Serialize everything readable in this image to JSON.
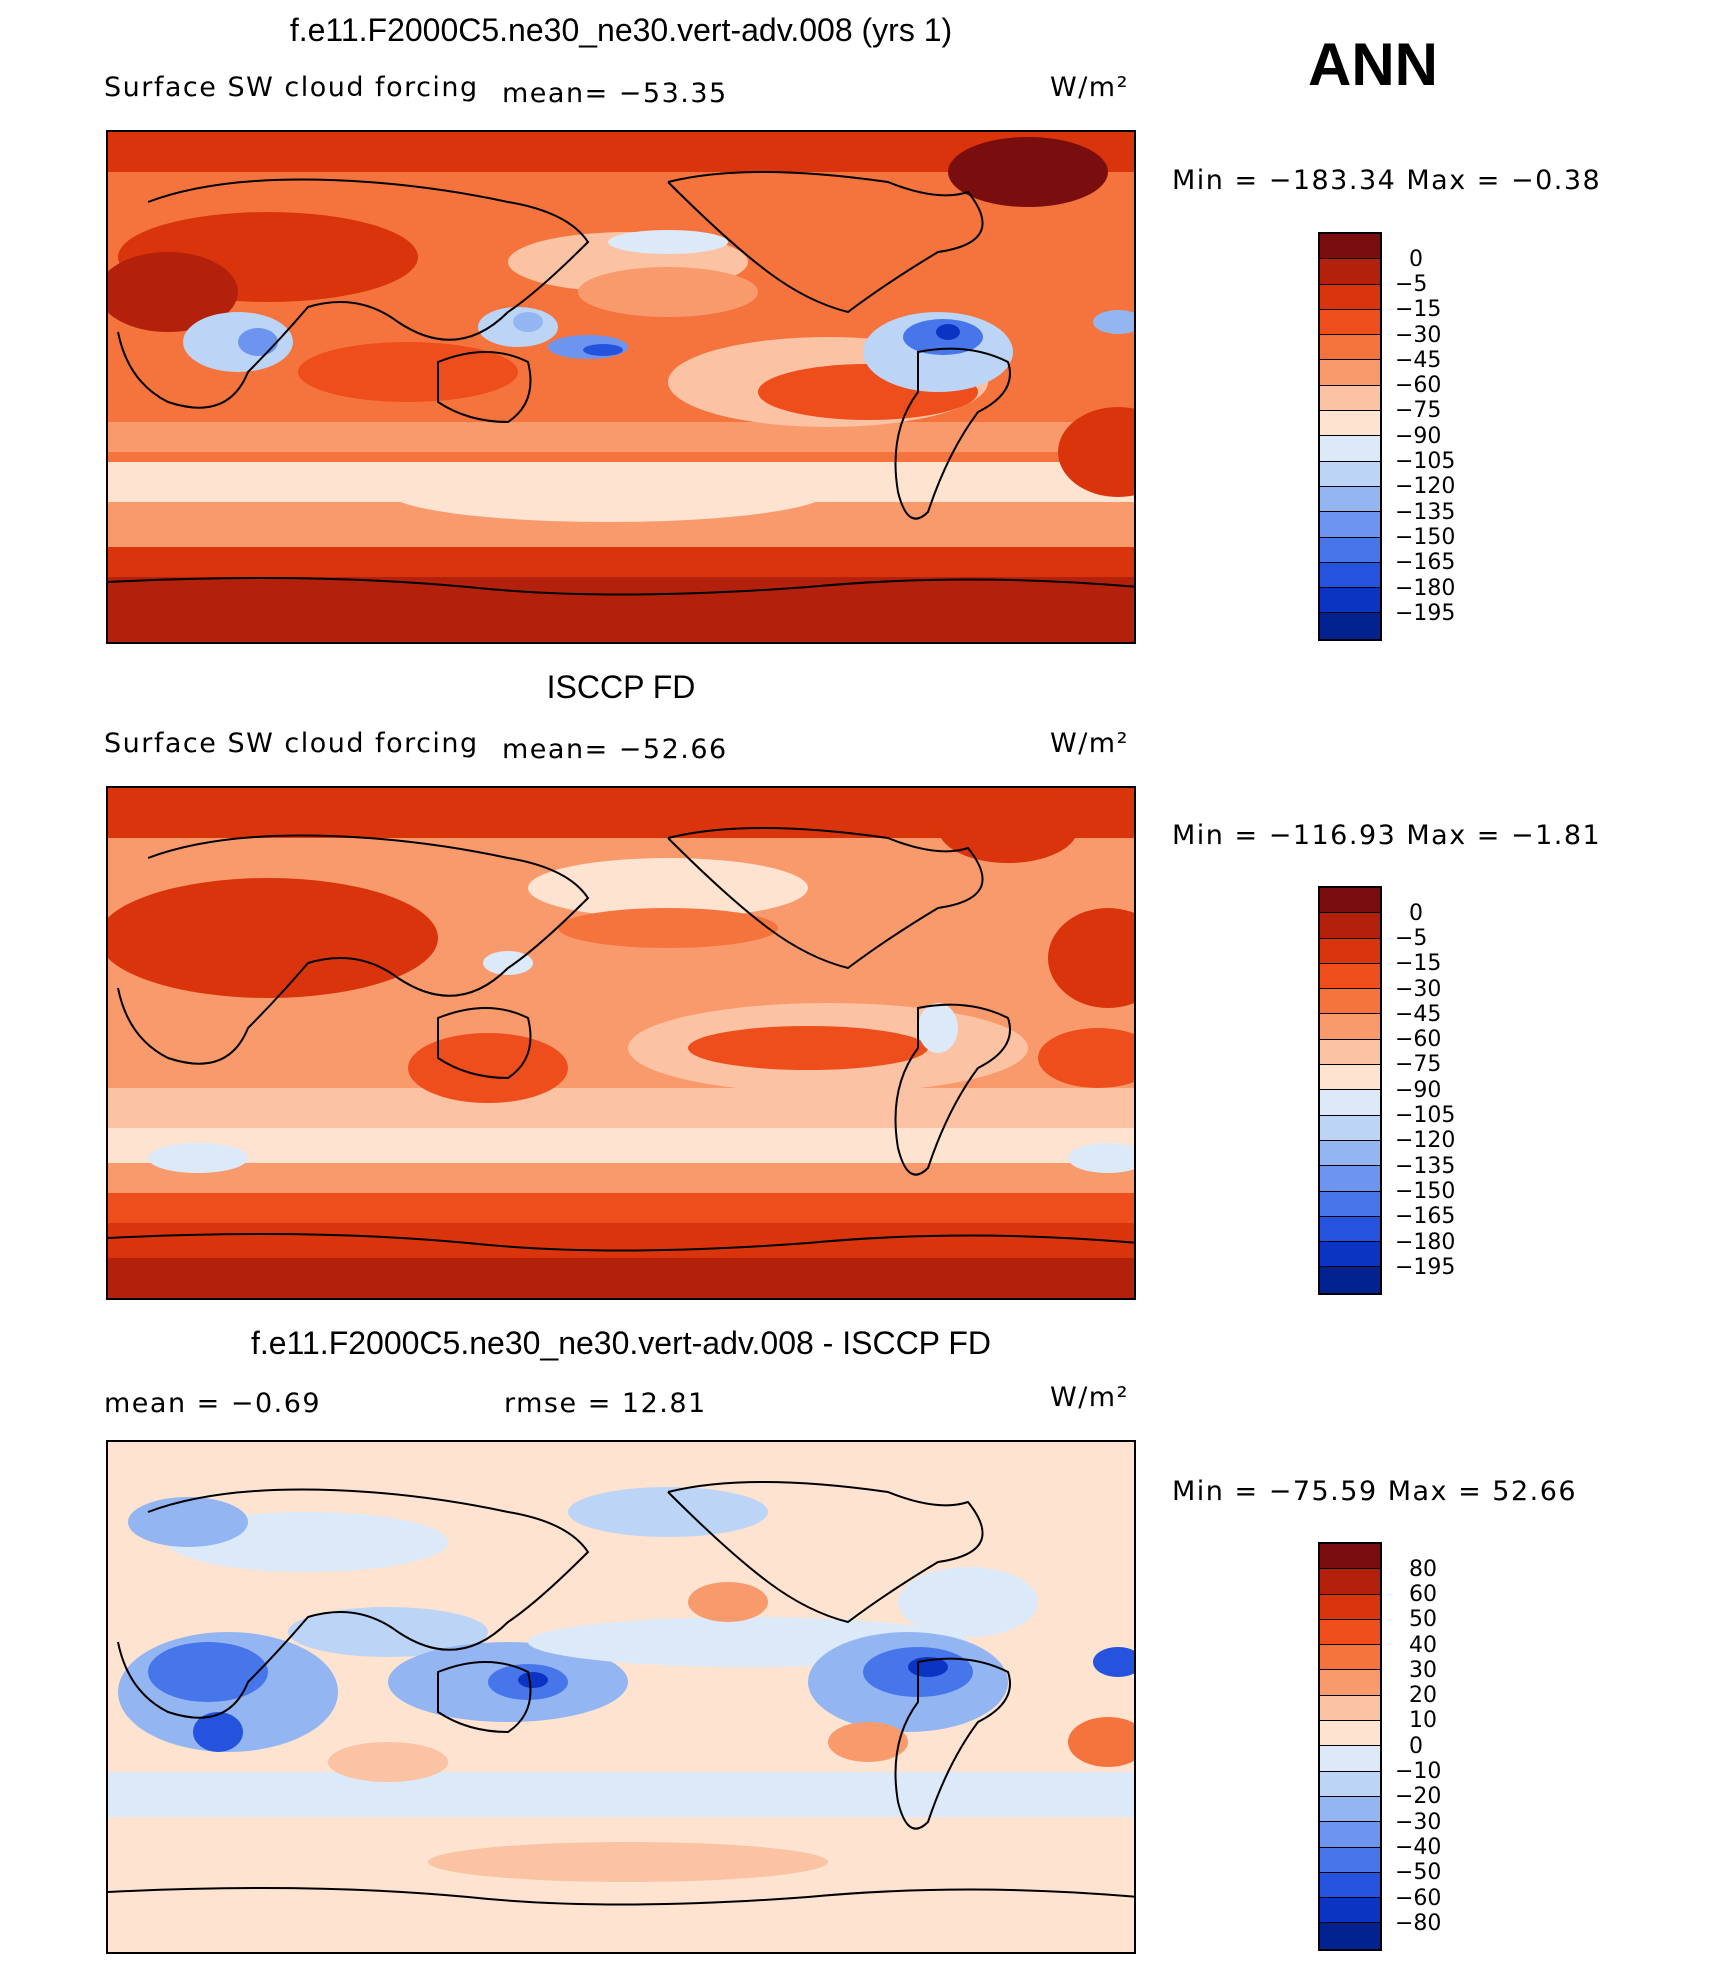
{
  "header": {
    "season": "ANN",
    "unit": "W/m²"
  },
  "panels": [
    {
      "title": "f.e11.F2000C5.ne30_ne30.vert-adv.008 (yrs 1)",
      "variable": "Surface SW cloud forcing",
      "stat": "mean=  −53.35",
      "min": "−183.34",
      "max": "−0.38",
      "minmax_text": "Min  =  −183.34  Max  =    −0.38"
    },
    {
      "title": "ISCCP FD",
      "variable": "Surface SW cloud forcing",
      "stat": "mean=  −52.66",
      "min": "−116.93",
      "max": "−1.81",
      "minmax_text": "Min  =  −116.93  Max  =    −1.81"
    },
    {
      "title": "f.e11.F2000C5.ne30_ne30.vert-adv.008 - ISCCP FD",
      "mean_text": "mean  =    −0.69",
      "rmse_text": "rmse  =    12.81",
      "min": "−75.59",
      "max": "52.66",
      "minmax_text": "Min  =  −75.59  Max  =    52.66"
    }
  ],
  "colorbars": {
    "abs": {
      "labels": [
        "0",
        "−5",
        "−15",
        "−30",
        "−45",
        "−60",
        "−75",
        "−90",
        "−105",
        "−120",
        "−135",
        "−150",
        "−165",
        "−180",
        "−195"
      ],
      "colors": [
        "#7a0d0d",
        "#b3200c",
        "#d9340b",
        "#ee4e1c",
        "#f5743e",
        "#f99a6d",
        "#fbc2a3",
        "#fde3d0",
        "#dbe9f8",
        "#bcd4f5",
        "#93b6f2",
        "#6d95ef",
        "#4776ea",
        "#2553de",
        "#0c34c2",
        "#02228f"
      ]
    },
    "diff": {
      "labels": [
        "80",
        "60",
        "50",
        "40",
        "30",
        "20",
        "10",
        "0",
        "−10",
        "−20",
        "−30",
        "−40",
        "−50",
        "−60",
        "−80"
      ],
      "colors": [
        "#7a0d0d",
        "#b3200c",
        "#d9340b",
        "#ee4e1c",
        "#f5743e",
        "#f99a6d",
        "#fbc2a3",
        "#fde3d0",
        "#dbe9f8",
        "#bcd4f5",
        "#93b6f2",
        "#6d95ef",
        "#4776ea",
        "#2553de",
        "#0c34c2",
        "#02228f"
      ]
    }
  },
  "chart_data": [
    {
      "type": "heatmap",
      "title": "f.e11.F2000C5.ne30_ne30.vert-adv.008 (yrs 1)",
      "subtitle": "Surface SW cloud forcing",
      "mean": -53.35,
      "min": -183.34,
      "max": -0.38,
      "units": "W/m²",
      "contour_levels": [
        0,
        -5,
        -15,
        -30,
        -45,
        -60,
        -75,
        -90,
        -105,
        -120,
        -135,
        -150,
        -165,
        -180,
        -195
      ]
    },
    {
      "type": "heatmap",
      "title": "ISCCP FD",
      "subtitle": "Surface SW cloud forcing",
      "mean": -52.66,
      "min": -116.93,
      "max": -1.81,
      "units": "W/m²",
      "contour_levels": [
        0,
        -5,
        -15,
        -30,
        -45,
        -60,
        -75,
        -90,
        -105,
        -120,
        -135,
        -150,
        -165,
        -180,
        -195
      ]
    },
    {
      "type": "heatmap",
      "title": "f.e11.F2000C5.ne30_ne30.vert-adv.008 - ISCCP FD",
      "mean": -0.69,
      "rmse": 12.81,
      "min": -75.59,
      "max": 52.66,
      "units": "W/m²",
      "contour_levels": [
        80,
        60,
        50,
        40,
        30,
        20,
        10,
        0,
        -10,
        -20,
        -30,
        -40,
        -50,
        -60,
        -80
      ]
    }
  ]
}
